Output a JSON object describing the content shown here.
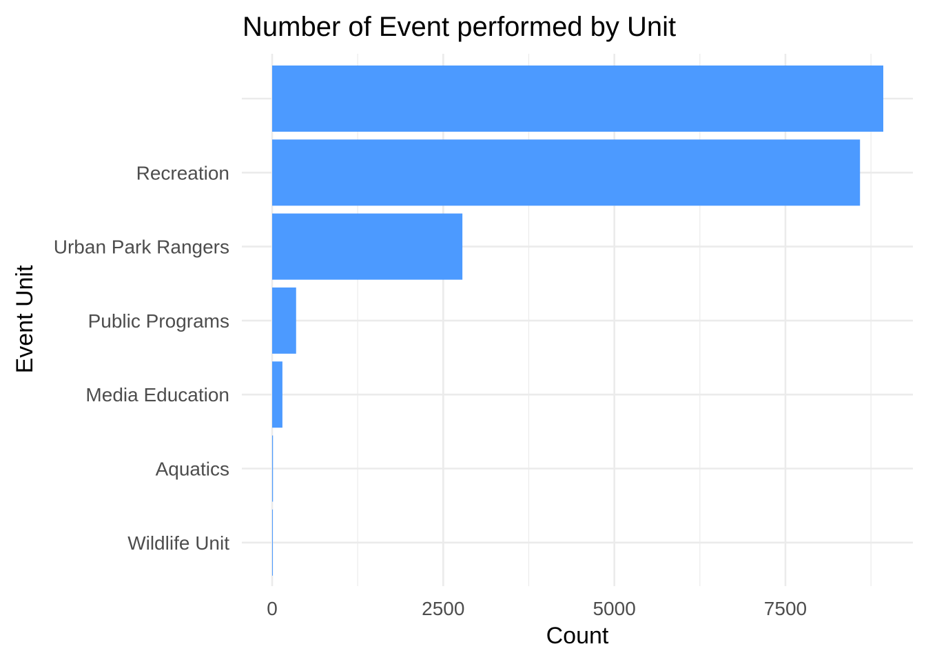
{
  "chart_data": {
    "type": "bar",
    "orientation": "horizontal",
    "title": "Number of Event performed by Unit",
    "xlabel": "Count",
    "ylabel": "Event Unit",
    "categories": [
      "",
      "Recreation",
      "Urban Park Rangers",
      "Public Programs",
      "Media Education",
      "Aquatics",
      "Wildlife Unit"
    ],
    "values": [
      8930,
      8590,
      2780,
      350,
      150,
      12,
      5
    ],
    "xlim": [
      0,
      9380
    ],
    "x_ticks": [
      0,
      2500,
      5000,
      7500
    ],
    "x_tick_labels": [
      "0",
      "2500",
      "5000",
      "7500"
    ],
    "grid": true,
    "bar_color": "#4c9aff",
    "grid_color": "#ebebeb"
  }
}
